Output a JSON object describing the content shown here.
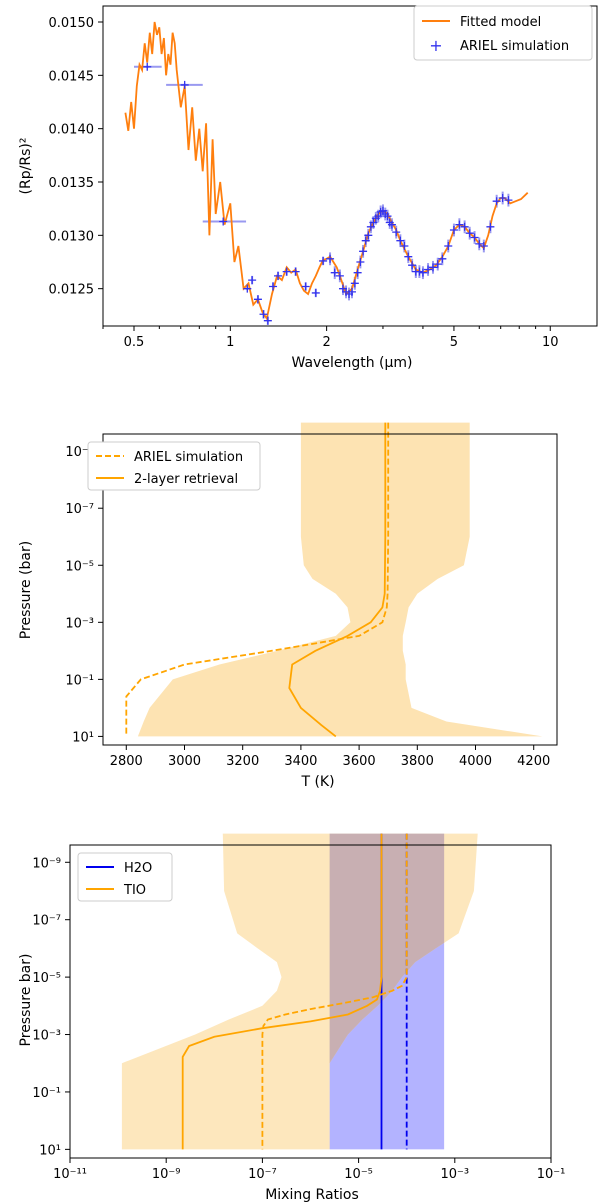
{
  "chart_data": [
    {
      "type": "line",
      "xlabel": "Wavelength (μm)",
      "ylabel": "(Rp/Rs)²",
      "xscale": "log",
      "xlim": [
        0.4,
        14
      ],
      "ylim": [
        0.01215,
        0.01515
      ],
      "xticks": [
        0.5,
        1,
        2,
        5,
        10
      ],
      "xtick_labels": [
        "0.5",
        "1",
        "2",
        "5",
        "10"
      ],
      "yticks": [
        0.0125,
        0.013,
        0.0135,
        0.014,
        0.0145,
        0.015
      ],
      "ytick_labels": [
        "0.0125",
        "0.0130",
        "0.0135",
        "0.0140",
        "0.0145",
        "0.0150"
      ],
      "legend": "top-right",
      "legend_entries": [
        "Fitted model",
        "ARIEL simulation"
      ],
      "colors": {
        "model": "#ff7f0e",
        "data": "#3333ee",
        "errbar": "#9999f0"
      },
      "series": [
        {
          "name": "Fitted model",
          "x": [
            0.47,
            0.48,
            0.49,
            0.5,
            0.51,
            0.52,
            0.53,
            0.54,
            0.55,
            0.56,
            0.57,
            0.58,
            0.59,
            0.6,
            0.61,
            0.62,
            0.63,
            0.64,
            0.65,
            0.66,
            0.67,
            0.68,
            0.7,
            0.72,
            0.74,
            0.76,
            0.78,
            0.8,
            0.82,
            0.84,
            0.86,
            0.88,
            0.9,
            0.93,
            0.96,
            1.0,
            1.03,
            1.06,
            1.1,
            1.14,
            1.18,
            1.22,
            1.26,
            1.3,
            1.35,
            1.4,
            1.45,
            1.5,
            1.55,
            1.6,
            1.65,
            1.7,
            1.75,
            1.8,
            1.85,
            1.9,
            1.95,
            2.0,
            2.05,
            2.1,
            2.15,
            2.2,
            2.3,
            2.4,
            2.5,
            2.6,
            2.7,
            2.8,
            2.9,
            3.0,
            3.1,
            3.2,
            3.3,
            3.4,
            3.6,
            3.8,
            4.0,
            4.2,
            4.4,
            4.6,
            4.8,
            5.0,
            5.2,
            5.4,
            5.6,
            5.8,
            6.0,
            6.2,
            6.4,
            6.6,
            6.8,
            7.0,
            7.2,
            7.5,
            7.8,
            8.1,
            8.5
          ],
          "y": [
            0.01415,
            0.01398,
            0.01425,
            0.014,
            0.0144,
            0.0146,
            0.01455,
            0.0148,
            0.01462,
            0.0149,
            0.0147,
            0.015,
            0.01488,
            0.01495,
            0.0147,
            0.01485,
            0.0145,
            0.0147,
            0.0146,
            0.0149,
            0.0148,
            0.01455,
            0.0142,
            0.0144,
            0.0138,
            0.0142,
            0.0137,
            0.014,
            0.0136,
            0.01405,
            0.013,
            0.0139,
            0.0132,
            0.0135,
            0.0131,
            0.0133,
            0.01275,
            0.0129,
            0.0125,
            0.01255,
            0.01235,
            0.0124,
            0.01228,
            0.01222,
            0.01245,
            0.01262,
            0.01258,
            0.0127,
            0.01265,
            0.01268,
            0.01255,
            0.01248,
            0.01245,
            0.01255,
            0.01262,
            0.0127,
            0.01277,
            0.01278,
            0.0128,
            0.01275,
            0.0127,
            0.01262,
            0.01245,
            0.0125,
            0.01268,
            0.01285,
            0.01302,
            0.01312,
            0.0132,
            0.01323,
            0.0132,
            0.01312,
            0.01305,
            0.01295,
            0.0128,
            0.01268,
            0.01265,
            0.01268,
            0.01272,
            0.0128,
            0.0129,
            0.01305,
            0.0131,
            0.01308,
            0.01302,
            0.01298,
            0.01292,
            0.01288,
            0.013,
            0.01318,
            0.0133,
            0.01335,
            0.01335,
            0.0133,
            0.01332,
            0.01334,
            0.0134
          ]
        },
        {
          "name": "ARIEL simulation",
          "x": [
            0.55,
            0.72,
            0.95,
            1.13,
            1.17,
            1.22,
            1.27,
            1.31,
            1.36,
            1.41,
            1.5,
            1.6,
            1.72,
            1.85,
            1.95,
            2.05,
            2.12,
            2.2,
            2.25,
            2.3,
            2.35,
            2.4,
            2.45,
            2.5,
            2.55,
            2.6,
            2.65,
            2.7,
            2.75,
            2.8,
            2.85,
            2.9,
            2.95,
            3.0,
            3.05,
            3.1,
            3.15,
            3.2,
            3.3,
            3.4,
            3.5,
            3.6,
            3.7,
            3.8,
            3.9,
            4.0,
            4.15,
            4.3,
            4.45,
            4.6,
            4.8,
            5.0,
            5.2,
            5.4,
            5.6,
            5.8,
            6.0,
            6.2,
            6.5,
            6.8,
            7.1,
            7.4
          ],
          "y": [
            0.01458,
            0.01441,
            0.01313,
            0.0125,
            0.01258,
            0.0124,
            0.01226,
            0.0122,
            0.01252,
            0.01262,
            0.01266,
            0.01266,
            0.01252,
            0.01246,
            0.01276,
            0.01278,
            0.01265,
            0.01262,
            0.0125,
            0.01247,
            0.01245,
            0.01247,
            0.01255,
            0.01265,
            0.01275,
            0.01285,
            0.01295,
            0.013,
            0.01308,
            0.01312,
            0.01316,
            0.01318,
            0.01322,
            0.01323,
            0.0132,
            0.01318,
            0.01312,
            0.0131,
            0.01303,
            0.01295,
            0.0129,
            0.0128,
            0.01272,
            0.01266,
            0.01266,
            0.01265,
            0.01268,
            0.0127,
            0.01273,
            0.01278,
            0.0129,
            0.01305,
            0.0131,
            0.01308,
            0.01302,
            0.01298,
            0.01292,
            0.0129,
            0.01308,
            0.01332,
            0.01335,
            0.01333
          ],
          "xerr_bins": [
            [
              0.5,
              0.61
            ],
            [
              0.63,
              0.82
            ],
            [
              0.82,
              1.12
            ]
          ]
        }
      ]
    },
    {
      "type": "line",
      "xlabel": "T (K)",
      "ylabel": "Pressure (bar)",
      "yscale": "log",
      "yinverted": true,
      "xlim": [
        2720,
        4280
      ],
      "ylim": [
        20,
        2.5e-10
      ],
      "xticks": [
        2800,
        3000,
        3200,
        3400,
        3600,
        3800,
        4000,
        4200
      ],
      "xtick_labels": [
        "2800",
        "3000",
        "3200",
        "3400",
        "3600",
        "3800",
        "4000",
        "4200"
      ],
      "yticks": [
        1e-09,
        1e-07,
        1e-05,
        0.001,
        0.1,
        10
      ],
      "ytick_labels": [
        "10⁻⁹",
        "10⁻⁷",
        "10⁻⁵",
        "10⁻³",
        "10⁻¹",
        "10¹"
      ],
      "legend": "top-left",
      "legend_entries": [
        "ARIEL simulation",
        "2-layer retrieval"
      ],
      "colors": {
        "line": "#ffa500",
        "band": "#fde3b2"
      },
      "band": {
        "p": [
          1e-10,
          1e-06,
          1e-05,
          3e-05,
          0.0001,
          0.0003,
          0.001,
          0.003,
          0.01,
          0.03,
          0.1,
          1,
          3,
          10
        ],
        "tmin": [
          3400,
          3400,
          3410,
          3440,
          3520,
          3560,
          3570,
          3520,
          3320,
          3120,
          2960,
          2880,
          2860,
          2840
        ],
        "tmax": [
          3980,
          3980,
          3960,
          3870,
          3800,
          3770,
          3760,
          3750,
          3750,
          3760,
          3760,
          3780,
          3900,
          4230
        ]
      },
      "series": [
        {
          "name": "ARIEL simulation",
          "style": "dashed",
          "t": [
            3700,
            3700,
            3698,
            3695,
            3680,
            3600,
            3300,
            3000,
            2850,
            2800,
            2800,
            2800
          ],
          "p": [
            1e-10,
            1e-06,
            0.0001,
            0.0003,
            0.001,
            0.003,
            0.01,
            0.03,
            0.1,
            0.4,
            2,
            10
          ]
        },
        {
          "name": "2-layer retrieval",
          "style": "solid",
          "t": [
            3690,
            3690,
            3688,
            3680,
            3640,
            3560,
            3450,
            3370,
            3360,
            3400,
            3470,
            3520
          ],
          "p": [
            1e-10,
            1e-06,
            0.0001,
            0.0003,
            0.001,
            0.003,
            0.01,
            0.03,
            0.2,
            1,
            4,
            10
          ]
        }
      ]
    },
    {
      "type": "line",
      "xlabel": "Mixing Ratios",
      "ylabel": "Pressure bar)",
      "xscale": "log",
      "yscale": "log",
      "yinverted": true,
      "xlim": [
        1e-11,
        0.1
      ],
      "ylim": [
        20,
        2.5e-10
      ],
      "xticks": [
        1e-11,
        1e-09,
        1e-07,
        1e-05,
        0.001,
        0.1
      ],
      "xtick_labels": [
        "10⁻¹¹",
        "10⁻⁹",
        "10⁻⁷",
        "10⁻⁵",
        "10⁻³",
        "10⁻¹"
      ],
      "yticks": [
        1e-09,
        1e-07,
        1e-05,
        0.001,
        0.1,
        10
      ],
      "ytick_labels": [
        "10⁻⁹",
        "10⁻⁷",
        "10⁻⁵",
        "10⁻³",
        "10⁻¹",
        "10¹"
      ],
      "legend": "top-left",
      "legend_entries": [
        "H2O",
        "TIO"
      ],
      "colors": {
        "h2o": "#0000ee",
        "tio": "#ffa500",
        "h2o_band": "#b3b3ff",
        "tio_band": "#fde3b2",
        "overlap": "#c8afb2"
      },
      "h2o_band": {
        "xmin": 2.5e-06,
        "xmax": 0.0006
      },
      "tio_band": {
        "p": [
          1e-10,
          1e-08,
          3e-07,
          1e-06,
          3e-06,
          1e-05,
          3e-05,
          0.0001,
          0.0003,
          0.001,
          0.01,
          10
        ],
        "xmin": [
          1.5e-08,
          1.6e-08,
          3e-08,
          8e-08,
          2e-07,
          2.5e-07,
          2e-07,
          1e-07,
          2e-08,
          4e-09,
          1.2e-10,
          1.2e-10
        ],
        "xmax": [
          0.003,
          0.0025,
          0.0012,
          0.0004,
          0.00015,
          8e-05,
          5e-05,
          2.5e-05,
          1.2e-05,
          6e-06,
          2.5e-06,
          2.5e-06
        ]
      },
      "series": [
        {
          "name": "H2O",
          "style": "solid",
          "x": [
            3e-05,
            3e-05
          ],
          "p": [
            1e-10,
            10
          ]
        },
        {
          "name": "H2O",
          "style": "dashed",
          "x": [
            0.0001,
            0.0001
          ],
          "p": [
            1e-10,
            10
          ]
        },
        {
          "name": "TIO",
          "style": "solid",
          "x": [
            3e-05,
            3e-05,
            2.8e-05,
            2.4e-05,
            1.5e-05,
            6e-06,
            1e-06,
            1e-07,
            1e-08,
            3e-09,
            2.2e-09,
            2.2e-09
          ],
          "p": [
            1e-10,
            1e-05,
            3e-05,
            6e-05,
            0.0001,
            0.0002,
            0.00035,
            0.0006,
            0.0012,
            0.0025,
            0.006,
            10
          ]
        },
        {
          "name": "TIO",
          "style": "dashed",
          "x": [
            0.0001,
            0.0001,
            8e-05,
            5e-05,
            2e-05,
            5e-06,
            1e-06,
            3e-07,
            1.3e-07,
            1.05e-07,
            1e-07,
            1e-07
          ],
          "p": [
            1e-10,
            1e-05,
            2e-05,
            3e-05,
            5e-05,
            8e-05,
            0.00013,
            0.0002,
            0.0003,
            0.0005,
            0.001,
            10
          ]
        }
      ]
    }
  ]
}
